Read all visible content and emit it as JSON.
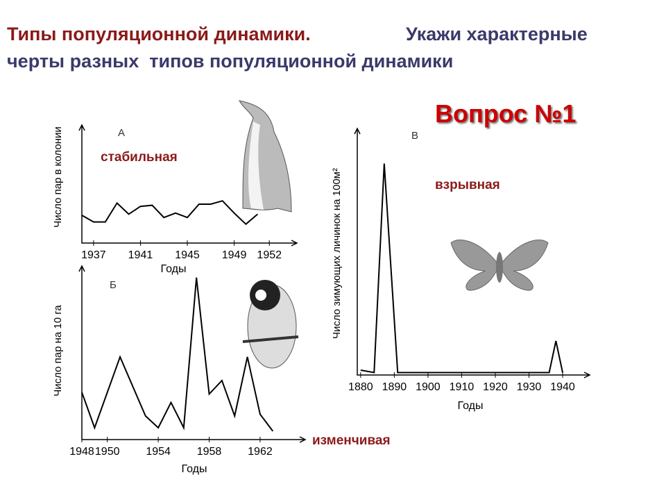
{
  "slide": {
    "title": "Типы популяционной динамики.",
    "task_line1": "Укажи характерные",
    "task_line2": "черты разных  типов популяционной динамики",
    "question": "Вопрос №1"
  },
  "chart_data": [
    {
      "type": "line",
      "panel": "А",
      "annotation": "стабильная",
      "x_label": "Годы",
      "y_label": "Число пар в колонии",
      "color": "#000000",
      "x": [
        1936,
        1937,
        1938,
        1939,
        1940,
        1941,
        1942,
        1943,
        1944,
        1945,
        1946,
        1947,
        1948,
        1949,
        1950,
        1951
      ],
      "values": [
        2.5,
        1.9,
        1.9,
        3.6,
        2.6,
        3.3,
        3.4,
        2.3,
        2.7,
        2.3,
        3.5,
        3.5,
        3.8,
        2.7,
        1.7,
        2.6
      ],
      "xlim": [
        1936,
        1954
      ],
      "xticks": [
        1937,
        1941,
        1945,
        1949,
        1952
      ],
      "ylim": [
        0,
        10
      ]
    },
    {
      "type": "line",
      "panel": "Б",
      "annotation": "изменчивая",
      "x_label": "Годы",
      "y_label": "Число пар на 10 га",
      "color": "#000000",
      "x": [
        1948,
        1949,
        1951,
        1953,
        1954,
        1955,
        1956,
        1957,
        1958,
        1959,
        1960,
        1961,
        1962,
        1963
      ],
      "values": [
        2.8,
        0.7,
        4.9,
        1.4,
        0.7,
        2.2,
        0.7,
        9.6,
        2.7,
        3.5,
        1.4,
        4.9,
        1.5,
        0.5
      ],
      "xlim": [
        1948,
        1965
      ],
      "xticks": [
        1948,
        1950,
        1954,
        1958,
        1962
      ],
      "ylim": [
        0,
        10
      ]
    },
    {
      "type": "line",
      "panel": "В",
      "annotation": "взрывная",
      "x_label": "Годы",
      "y_label": "Число зимующих личинок на 100м²",
      "color": "#000000",
      "x": [
        1880,
        1884,
        1887,
        1891,
        1895,
        1900,
        1905,
        1910,
        1915,
        1920,
        1925,
        1930,
        1936,
        1938,
        1940
      ],
      "values": [
        0.2,
        0.1,
        8.7,
        0.1,
        0.1,
        0.1,
        0.1,
        0.1,
        0.1,
        0.1,
        0.1,
        0.1,
        0.1,
        1.4,
        0.1
      ],
      "xlim": [
        1879,
        1947
      ],
      "xticks": [
        1880,
        1890,
        1900,
        1910,
        1920,
        1930,
        1940
      ],
      "ylim": [
        0,
        10
      ]
    }
  ]
}
